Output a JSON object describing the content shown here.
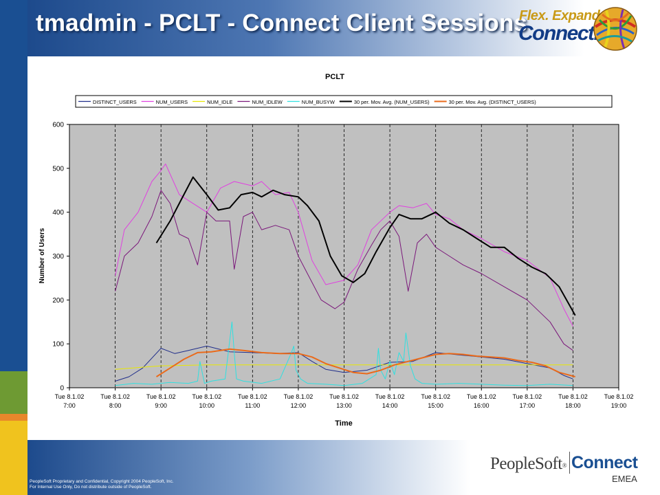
{
  "slide": {
    "title": "tmadmin - PCLT - Connect Client Sessions",
    "logo_tagline": "Flex. Expand.",
    "logo_word": "Connect.",
    "footer_line1": "PeopleSoft Proprietary and Confidential, Copyright 2004 PeopleSoft, Inc.",
    "footer_line2": "For Internal Use Only, Do not distribute outside of PeopleSoft.",
    "brand_company": "PeopleSoft",
    "brand_reg": "®",
    "brand_product": "Connect",
    "brand_region": "EMEA"
  },
  "colors": {
    "plot_bg": "#c0c0c0",
    "side_blue": "#1a4f92",
    "side_green": "#6e9a33",
    "side_orange": "#e8872b",
    "side_yellow": "#f0c31e"
  },
  "icons": [
    "rubber-band-ball-icon"
  ],
  "chart_data": {
    "type": "line",
    "title": "PCLT",
    "xlabel": "Time",
    "ylabel": "Number of Users",
    "ylim": [
      0,
      600
    ],
    "yticks": [
      0,
      100,
      200,
      300,
      400,
      500,
      600
    ],
    "xlim": [
      7,
      19
    ],
    "xtick_dates": [
      "Tue 8.1.02",
      "Tue 8.1.02",
      "Tue 8.1.02",
      "Tue 8.1.02",
      "Tue 8.1.02",
      "Tue 8.1.02",
      "Tue 8.1.02",
      "Tue 8.1.02",
      "Tue 8.1.02",
      "Tue 8.1.02",
      "Tue 8.1.02",
      "Tue 8.1.02",
      "Tue 8.1.02"
    ],
    "xtick_times": [
      "7:00",
      "8:00",
      "9:00",
      "10:00",
      "11:00",
      "12:00",
      "13:00",
      "14:00",
      "15:00",
      "16:00",
      "17:00",
      "18:00",
      "19:00"
    ],
    "grid": "vertical dashed",
    "legend_position": "top",
    "series": [
      {
        "name": "DISTINCT_USERS",
        "color": "#1f2d8a",
        "width": 1,
        "x": [
          8,
          8.3,
          8.6,
          9,
          9.3,
          9.6,
          10,
          10.5,
          11,
          11.5,
          12,
          12.3,
          12.6,
          13,
          13.5,
          14,
          14.5,
          15,
          15.5,
          16,
          16.5,
          17,
          17.5,
          17.8,
          18
        ],
        "y": [
          15,
          25,
          45,
          90,
          78,
          85,
          95,
          82,
          80,
          78,
          80,
          60,
          42,
          35,
          40,
          58,
          60,
          80,
          75,
          70,
          65,
          55,
          45,
          28,
          20
        ]
      },
      {
        "name": "NUM_USERS",
        "color": "#e040e0",
        "width": 1,
        "x": [
          8,
          8.2,
          8.5,
          8.8,
          9,
          9.1,
          9.4,
          9.7,
          10,
          10.3,
          10.6,
          11,
          11.2,
          11.5,
          11.8,
          12,
          12.3,
          12.6,
          13,
          13.3,
          13.6,
          14,
          14.2,
          14.5,
          14.8,
          15,
          15.3,
          15.6,
          16,
          16.5,
          17,
          17.5,
          17.8,
          18
        ],
        "y": [
          255,
          360,
          400,
          470,
          495,
          510,
          440,
          420,
          400,
          455,
          470,
          460,
          470,
          440,
          445,
          400,
          290,
          235,
          245,
          280,
          360,
          400,
          415,
          410,
          420,
          395,
          385,
          360,
          340,
          310,
          290,
          250,
          180,
          140
        ]
      },
      {
        "name": "NUM_IDLE",
        "color": "#e8e800",
        "width": 1,
        "x": [
          8,
          8.5,
          9,
          10,
          11,
          12,
          13,
          14,
          15,
          16,
          17,
          18
        ],
        "y": [
          42,
          46,
          50,
          52,
          52,
          52,
          52,
          52,
          52,
          52,
          52,
          52
        ]
      },
      {
        "name": "NUM_IDLEW",
        "color": "#7a167a",
        "width": 1,
        "x": [
          8,
          8.2,
          8.5,
          8.8,
          9,
          9.2,
          9.4,
          9.6,
          9.8,
          10,
          10.2,
          10.5,
          10.6,
          10.8,
          11,
          11.2,
          11.5,
          11.8,
          12,
          12.2,
          12.5,
          12.8,
          13,
          13.3,
          13.6,
          13.8,
          14,
          14.2,
          14.4,
          14.6,
          14.8,
          15,
          15.3,
          15.6,
          16,
          16.5,
          17,
          17.5,
          17.8,
          18
        ],
        "y": [
          220,
          300,
          330,
          390,
          450,
          420,
          350,
          340,
          280,
          400,
          380,
          380,
          270,
          390,
          400,
          360,
          370,
          360,
          300,
          260,
          200,
          180,
          195,
          270,
          325,
          360,
          380,
          345,
          220,
          330,
          350,
          320,
          300,
          280,
          260,
          230,
          200,
          150,
          100,
          85
        ]
      },
      {
        "name": "NUM_BUSYW",
        "color": "#2ee0e0",
        "width": 1,
        "x": [
          8,
          8.4,
          8.8,
          9.2,
          9.6,
          9.8,
          9.85,
          9.95,
          10.1,
          10.4,
          10.55,
          10.6,
          10.65,
          10.8,
          11.2,
          11.6,
          11.85,
          11.9,
          11.95,
          12.05,
          12.2,
          12.6,
          13,
          13.4,
          13.7,
          13.75,
          13.8,
          13.9,
          14,
          14.1,
          14.2,
          14.3,
          14.35,
          14.45,
          14.55,
          14.7,
          15,
          15.5,
          16,
          16.5,
          17,
          17.5,
          18
        ],
        "y": [
          5,
          10,
          8,
          12,
          10,
          15,
          60,
          10,
          15,
          20,
          150,
          80,
          20,
          15,
          10,
          20,
          80,
          95,
          40,
          20,
          10,
          8,
          5,
          10,
          30,
          90,
          40,
          20,
          60,
          30,
          80,
          60,
          125,
          50,
          20,
          10,
          8,
          10,
          8,
          6,
          5,
          8,
          5
        ]
      },
      {
        "name": "30 per. Mov. Avg. (NUM_USERS)",
        "color": "#000000",
        "width": 2,
        "x": [
          8.9,
          9.2,
          9.45,
          9.7,
          10,
          10.25,
          10.5,
          10.75,
          11,
          11.2,
          11.45,
          11.7,
          12,
          12.2,
          12.45,
          12.7,
          12.95,
          13.2,
          13.45,
          13.7,
          14,
          14.2,
          14.45,
          14.7,
          15,
          15.3,
          15.6,
          15.9,
          16.2,
          16.5,
          16.8,
          17.1,
          17.4,
          17.7,
          18.05
        ],
        "y": [
          330,
          380,
          430,
          480,
          440,
          405,
          410,
          440,
          445,
          435,
          450,
          440,
          435,
          415,
          380,
          300,
          255,
          240,
          260,
          310,
          365,
          395,
          385,
          385,
          400,
          375,
          360,
          340,
          320,
          320,
          295,
          275,
          260,
          230,
          165
        ]
      },
      {
        "name": "30 per. Mov. Avg. (DISTINCT_USERS)",
        "color": "#ea6a1a",
        "width": 2,
        "x": [
          8.9,
          9.2,
          9.5,
          9.8,
          10.1,
          10.5,
          10.8,
          11.2,
          11.6,
          12,
          12.3,
          12.6,
          12.9,
          13.2,
          13.5,
          13.8,
          14.1,
          14.4,
          14.7,
          15,
          15.3,
          15.6,
          15.9,
          16.2,
          16.5,
          16.8,
          17.1,
          17.4,
          17.7,
          18.05
        ],
        "y": [
          25,
          45,
          65,
          80,
          82,
          88,
          85,
          80,
          78,
          78,
          70,
          55,
          45,
          35,
          32,
          40,
          52,
          60,
          68,
          76,
          78,
          76,
          72,
          70,
          68,
          62,
          58,
          50,
          35,
          25
        ]
      }
    ]
  }
}
